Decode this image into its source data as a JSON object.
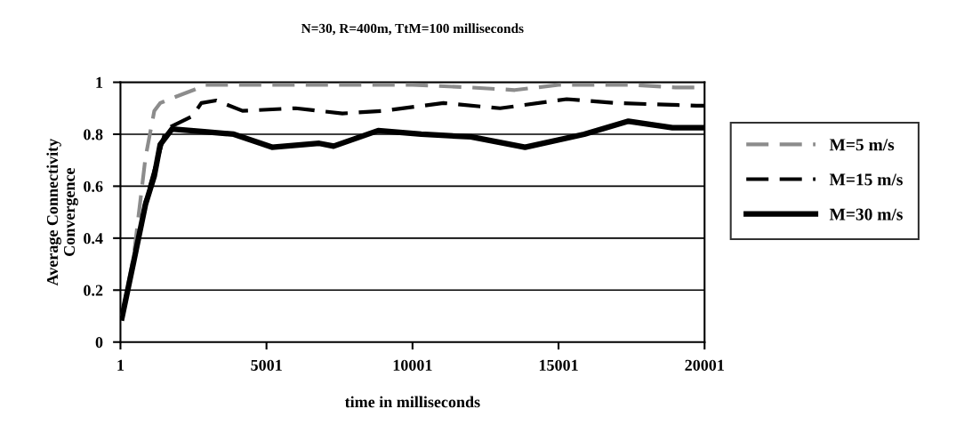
{
  "chart_data": {
    "type": "line",
    "title": "N=30, R=400m, TtM=100 milliseconds",
    "xlabel": "time in milliseconds",
    "ylabel": "Average Connectivity\nConvergence",
    "xlim": [
      1,
      20001
    ],
    "xticks": [
      1,
      5001,
      10001,
      15001,
      20001
    ],
    "ylim": [
      0,
      1
    ],
    "yticks": [
      0,
      0.2,
      0.4,
      0.6,
      0.8,
      1
    ],
    "grid": "y",
    "legend": "right",
    "marker": "none",
    "series": [
      {
        "name": "M=5 m/s",
        "color": "#8c8c8c",
        "line_style": "dashed",
        "x": [
          51,
          455,
          858,
          1160,
          1360,
          1800,
          2500,
          2900,
          4000,
          6000,
          8000,
          10000,
          12000,
          13500,
          15000,
          16000,
          17500,
          19000,
          20001
        ],
        "values": [
          0.1,
          0.33,
          0.71,
          0.89,
          0.92,
          0.94,
          0.97,
          0.99,
          0.99,
          0.99,
          0.99,
          0.99,
          0.98,
          0.97,
          0.99,
          0.99,
          0.99,
          0.98,
          0.98
        ]
      },
      {
        "name": "M=15 m/s",
        "color": "#000000",
        "line_style": "dashed",
        "x": [
          51,
          455,
          858,
          1160,
          1560,
          2470,
          2770,
          3280,
          4180,
          6000,
          7600,
          9000,
          11060,
          13000,
          15280,
          17000,
          19720,
          20001
        ],
        "values": [
          0.09,
          0.31,
          0.54,
          0.66,
          0.82,
          0.87,
          0.92,
          0.93,
          0.89,
          0.9,
          0.88,
          0.89,
          0.92,
          0.9,
          0.935,
          0.92,
          0.91,
          0.91
        ]
      },
      {
        "name": "M=30 m/s",
        "color": "#000000",
        "line_style": "solid",
        "x": [
          51,
          455,
          858,
          1160,
          1362,
          1765,
          2874,
          3882,
          5192,
          6808,
          7300,
          8825,
          10300,
          12000,
          13854,
          15880,
          17394,
          18900,
          20001
        ],
        "values": [
          0.093,
          0.31,
          0.53,
          0.64,
          0.76,
          0.82,
          0.81,
          0.8,
          0.75,
          0.765,
          0.754,
          0.814,
          0.8,
          0.79,
          0.75,
          0.8,
          0.85,
          0.825,
          0.825
        ]
      }
    ]
  }
}
